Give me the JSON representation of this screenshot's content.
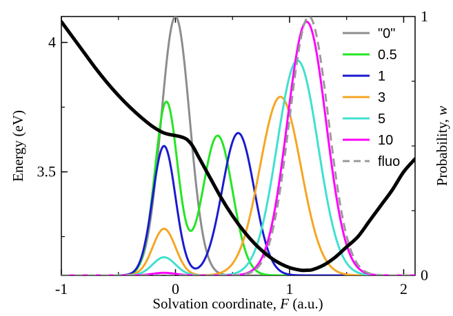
{
  "chart_data": {
    "type": "line",
    "xlabel": "Solvation coordinate, F (a.u.)",
    "xlabel_parts": [
      "Solvation coordinate, ",
      "F",
      " (a.u.)"
    ],
    "ylabel_left": "Energy (eV)",
    "ylabel_right": "Probability, w",
    "ylabel_right_parts": [
      "Probability, ",
      "w"
    ],
    "xlim": [
      -1,
      2.1
    ],
    "ylim_left": [
      3.1,
      4.1
    ],
    "ylim_right": [
      0,
      1
    ],
    "xticks": [
      -1,
      0,
      1,
      2
    ],
    "xtick_labels": [
      "-1",
      "0",
      "1",
      "2"
    ],
    "yticks_left": [
      3.5,
      4.0
    ],
    "ytick_labels_left": [
      "3.5",
      "4"
    ],
    "yticks_right": [
      0,
      1
    ],
    "ytick_labels_right": [
      "0",
      "1"
    ],
    "legend_position": "top-right",
    "energy_curve": {
      "axis": "left",
      "color": "#000000",
      "x": [
        -1.0,
        -0.9,
        -0.8,
        -0.7,
        -0.6,
        -0.5,
        -0.4,
        -0.3,
        -0.2,
        -0.1,
        0.0,
        0.05,
        0.1,
        0.15,
        0.2,
        0.3,
        0.4,
        0.5,
        0.6,
        0.7,
        0.8,
        0.9,
        1.0,
        1.1,
        1.15,
        1.2,
        1.3,
        1.4,
        1.5,
        1.6,
        1.7,
        1.8,
        1.9,
        2.0,
        2.1
      ],
      "y": [
        4.08,
        4.02,
        3.96,
        3.9,
        3.845,
        3.795,
        3.75,
        3.71,
        3.675,
        3.65,
        3.64,
        3.635,
        3.625,
        3.6,
        3.56,
        3.48,
        3.4,
        3.33,
        3.27,
        3.22,
        3.18,
        3.15,
        3.13,
        3.12,
        3.12,
        3.122,
        3.14,
        3.17,
        3.21,
        3.25,
        3.31,
        3.37,
        3.43,
        3.5,
        3.55
      ]
    },
    "series": [
      {
        "name": "\"0\"",
        "color": "#8c8c8c",
        "dash": false,
        "components": [
          {
            "a": 1.0,
            "mu": 0.0,
            "s": 0.125
          }
        ]
      },
      {
        "name": "0.5",
        "color": "#22e622",
        "dash": false,
        "components": [
          {
            "a": 0.67,
            "mu": -0.08,
            "s": 0.1
          },
          {
            "a": 0.54,
            "mu": 0.37,
            "s": 0.13
          }
        ]
      },
      {
        "name": "1",
        "color": "#1a1ad0",
        "dash": false,
        "components": [
          {
            "a": 0.5,
            "mu": -0.1,
            "s": 0.1
          },
          {
            "a": 0.55,
            "mu": 0.55,
            "s": 0.14
          }
        ]
      },
      {
        "name": "3",
        "color": "#f5a623",
        "dash": false,
        "components": [
          {
            "a": 0.18,
            "mu": -0.1,
            "s": 0.1
          },
          {
            "a": 0.69,
            "mu": 0.92,
            "s": 0.18
          }
        ]
      },
      {
        "name": "5",
        "color": "#40e0d0",
        "dash": false,
        "components": [
          {
            "a": 0.07,
            "mu": -0.1,
            "s": 0.1
          },
          {
            "a": 0.83,
            "mu": 1.07,
            "s": 0.18
          }
        ]
      },
      {
        "name": "10",
        "color": "#ff00ff",
        "dash": false,
        "components": [
          {
            "a": 0.01,
            "mu": -0.1,
            "s": 0.1
          },
          {
            "a": 0.98,
            "mu": 1.15,
            "s": 0.17
          }
        ]
      },
      {
        "name": "fluo",
        "color": "#999999",
        "dash": true,
        "components": [
          {
            "a": 1.0,
            "mu": 1.17,
            "s": 0.17
          }
        ]
      }
    ]
  }
}
